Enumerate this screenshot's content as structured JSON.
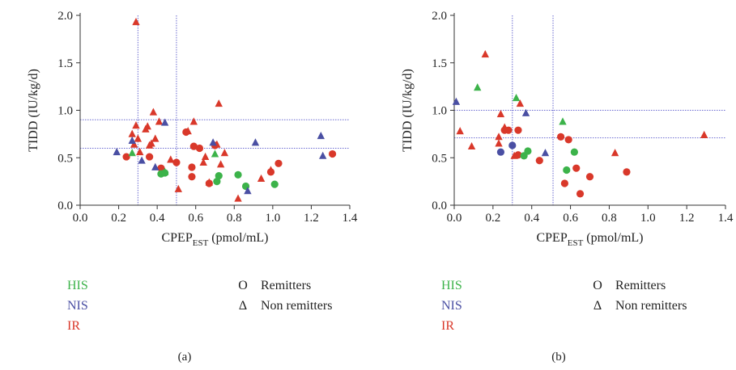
{
  "colors": {
    "HIS": "#3cb34a",
    "NIS": "#4a4fa3",
    "IR": "#d9382a",
    "axis": "#333333",
    "refline": "#6a6ad0"
  },
  "legend": {
    "groups": [
      {
        "key": "HIS",
        "label": "HIS"
      },
      {
        "key": "NIS",
        "label": "NIS"
      },
      {
        "key": "IR",
        "label": "IR"
      }
    ],
    "markers": [
      {
        "symbol": "O",
        "label": "Remitters"
      },
      {
        "symbol": "Δ",
        "label": "Non remitters"
      }
    ]
  },
  "chart_data": [
    {
      "type": "scatter",
      "panel_label": "(a)",
      "ylabel": "TIDD (IU/kg/d)",
      "xlabel_main": "CPEP",
      "xlabel_sub": "EST",
      "xlabel_unit": " (pmol/mL)",
      "xlim": [
        0.0,
        1.4
      ],
      "ylim": [
        0.0,
        2.0
      ],
      "xticks": [
        "0.0",
        "0.2",
        "0.4",
        "0.6",
        "0.8",
        "1.0",
        "1.2",
        "1.4"
      ],
      "yticks": [
        "0.0",
        "0.5",
        "1.0",
        "1.5",
        "2.0"
      ],
      "ref_x": [
        0.3,
        0.5
      ],
      "ref_y": [
        0.6,
        0.9
      ],
      "points": [
        {
          "x": 0.24,
          "y": 0.51,
          "group": "IR",
          "shape": "circle"
        },
        {
          "x": 0.36,
          "y": 0.51,
          "group": "IR",
          "shape": "circle"
        },
        {
          "x": 0.42,
          "y": 0.39,
          "group": "IR",
          "shape": "circle"
        },
        {
          "x": 0.5,
          "y": 0.45,
          "group": "IR",
          "shape": "circle"
        },
        {
          "x": 0.55,
          "y": 0.77,
          "group": "IR",
          "shape": "circle"
        },
        {
          "x": 0.58,
          "y": 0.4,
          "group": "IR",
          "shape": "circle"
        },
        {
          "x": 0.58,
          "y": 0.3,
          "group": "IR",
          "shape": "circle"
        },
        {
          "x": 0.59,
          "y": 0.62,
          "group": "IR",
          "shape": "circle"
        },
        {
          "x": 0.62,
          "y": 0.6,
          "group": "IR",
          "shape": "circle"
        },
        {
          "x": 0.7,
          "y": 0.63,
          "group": "IR",
          "shape": "circle"
        },
        {
          "x": 0.67,
          "y": 0.23,
          "group": "IR",
          "shape": "circle"
        },
        {
          "x": 0.99,
          "y": 0.35,
          "group": "IR",
          "shape": "circle"
        },
        {
          "x": 1.03,
          "y": 0.44,
          "group": "IR",
          "shape": "circle"
        },
        {
          "x": 1.31,
          "y": 0.54,
          "group": "IR",
          "shape": "circle"
        },
        {
          "x": 0.42,
          "y": 0.33,
          "group": "HIS",
          "shape": "circle"
        },
        {
          "x": 0.44,
          "y": 0.34,
          "group": "HIS",
          "shape": "circle"
        },
        {
          "x": 0.71,
          "y": 0.25,
          "group": "HIS",
          "shape": "circle"
        },
        {
          "x": 0.72,
          "y": 0.31,
          "group": "HIS",
          "shape": "circle"
        },
        {
          "x": 0.82,
          "y": 0.32,
          "group": "HIS",
          "shape": "circle"
        },
        {
          "x": 0.86,
          "y": 0.2,
          "group": "HIS",
          "shape": "circle"
        },
        {
          "x": 1.01,
          "y": 0.22,
          "group": "HIS",
          "shape": "circle"
        },
        {
          "x": 0.29,
          "y": 1.93,
          "group": "IR",
          "shape": "triangle"
        },
        {
          "x": 0.27,
          "y": 0.75,
          "group": "IR",
          "shape": "triangle"
        },
        {
          "x": 0.28,
          "y": 0.64,
          "group": "IR",
          "shape": "triangle"
        },
        {
          "x": 0.29,
          "y": 0.84,
          "group": "IR",
          "shape": "triangle"
        },
        {
          "x": 0.3,
          "y": 0.7,
          "group": "IR",
          "shape": "triangle"
        },
        {
          "x": 0.31,
          "y": 0.56,
          "group": "IR",
          "shape": "triangle"
        },
        {
          "x": 0.34,
          "y": 0.8,
          "group": "IR",
          "shape": "triangle"
        },
        {
          "x": 0.35,
          "y": 0.83,
          "group": "IR",
          "shape": "triangle"
        },
        {
          "x": 0.36,
          "y": 0.63,
          "group": "IR",
          "shape": "triangle"
        },
        {
          "x": 0.37,
          "y": 0.65,
          "group": "IR",
          "shape": "triangle"
        },
        {
          "x": 0.38,
          "y": 0.98,
          "group": "IR",
          "shape": "triangle"
        },
        {
          "x": 0.39,
          "y": 0.7,
          "group": "IR",
          "shape": "triangle"
        },
        {
          "x": 0.41,
          "y": 0.88,
          "group": "IR",
          "shape": "triangle"
        },
        {
          "x": 0.47,
          "y": 0.48,
          "group": "IR",
          "shape": "triangle"
        },
        {
          "x": 0.51,
          "y": 0.17,
          "group": "IR",
          "shape": "triangle"
        },
        {
          "x": 0.56,
          "y": 0.78,
          "group": "IR",
          "shape": "triangle"
        },
        {
          "x": 0.59,
          "y": 0.88,
          "group": "IR",
          "shape": "triangle"
        },
        {
          "x": 0.64,
          "y": 0.45,
          "group": "IR",
          "shape": "triangle"
        },
        {
          "x": 0.65,
          "y": 0.51,
          "group": "IR",
          "shape": "triangle"
        },
        {
          "x": 0.67,
          "y": 0.24,
          "group": "IR",
          "shape": "triangle"
        },
        {
          "x": 0.71,
          "y": 0.64,
          "group": "IR",
          "shape": "triangle"
        },
        {
          "x": 0.72,
          "y": 1.07,
          "group": "IR",
          "shape": "triangle"
        },
        {
          "x": 0.73,
          "y": 0.43,
          "group": "IR",
          "shape": "triangle"
        },
        {
          "x": 0.75,
          "y": 0.55,
          "group": "IR",
          "shape": "triangle"
        },
        {
          "x": 0.82,
          "y": 0.07,
          "group": "IR",
          "shape": "triangle"
        },
        {
          "x": 0.94,
          "y": 0.28,
          "group": "IR",
          "shape": "triangle"
        },
        {
          "x": 0.99,
          "y": 0.37,
          "group": "IR",
          "shape": "triangle"
        },
        {
          "x": 0.19,
          "y": 0.56,
          "group": "NIS",
          "shape": "triangle"
        },
        {
          "x": 0.27,
          "y": 0.68,
          "group": "NIS",
          "shape": "triangle"
        },
        {
          "x": 0.32,
          "y": 0.47,
          "group": "NIS",
          "shape": "triangle"
        },
        {
          "x": 0.39,
          "y": 0.4,
          "group": "NIS",
          "shape": "triangle"
        },
        {
          "x": 0.44,
          "y": 0.87,
          "group": "NIS",
          "shape": "triangle"
        },
        {
          "x": 0.69,
          "y": 0.66,
          "group": "NIS",
          "shape": "triangle"
        },
        {
          "x": 0.87,
          "y": 0.15,
          "group": "NIS",
          "shape": "triangle"
        },
        {
          "x": 0.91,
          "y": 0.66,
          "group": "NIS",
          "shape": "triangle"
        },
        {
          "x": 1.25,
          "y": 0.73,
          "group": "NIS",
          "shape": "triangle"
        },
        {
          "x": 1.26,
          "y": 0.52,
          "group": "NIS",
          "shape": "triangle"
        },
        {
          "x": 0.27,
          "y": 0.55,
          "group": "HIS",
          "shape": "triangle"
        },
        {
          "x": 0.7,
          "y": 0.54,
          "group": "HIS",
          "shape": "triangle"
        },
        {
          "x": 0.44,
          "y": 0.35,
          "group": "HIS",
          "shape": "triangle"
        }
      ]
    },
    {
      "type": "scatter",
      "panel_label": "(b)",
      "ylabel": "TIDD (IU/kg/d)",
      "xlabel_main": "CPEP",
      "xlabel_sub": "EST",
      "xlabel_unit": " (pmol/mL)",
      "xlim": [
        0.0,
        1.4
      ],
      "ylim": [
        0.0,
        2.0
      ],
      "xticks": [
        "0.0",
        "0.2",
        "0.4",
        "0.6",
        "0.8",
        "1.0",
        "1.2",
        "1.4"
      ],
      "yticks": [
        "0.0",
        "0.5",
        "1.0",
        "1.5",
        "2.0"
      ],
      "ref_x": [
        0.3,
        0.51
      ],
      "ref_y": [
        0.71,
        1.0
      ],
      "points": [
        {
          "x": 0.26,
          "y": 0.79,
          "group": "IR",
          "shape": "circle"
        },
        {
          "x": 0.28,
          "y": 0.79,
          "group": "IR",
          "shape": "circle"
        },
        {
          "x": 0.33,
          "y": 0.79,
          "group": "IR",
          "shape": "circle"
        },
        {
          "x": 0.33,
          "y": 0.53,
          "group": "IR",
          "shape": "circle"
        },
        {
          "x": 0.44,
          "y": 0.47,
          "group": "IR",
          "shape": "circle"
        },
        {
          "x": 0.55,
          "y": 0.72,
          "group": "IR",
          "shape": "circle"
        },
        {
          "x": 0.59,
          "y": 0.69,
          "group": "IR",
          "shape": "circle"
        },
        {
          "x": 0.63,
          "y": 0.39,
          "group": "IR",
          "shape": "circle"
        },
        {
          "x": 0.57,
          "y": 0.23,
          "group": "IR",
          "shape": "circle"
        },
        {
          "x": 0.65,
          "y": 0.12,
          "group": "IR",
          "shape": "circle"
        },
        {
          "x": 0.7,
          "y": 0.3,
          "group": "IR",
          "shape": "circle"
        },
        {
          "x": 0.89,
          "y": 0.35,
          "group": "IR",
          "shape": "circle"
        },
        {
          "x": 0.3,
          "y": 0.63,
          "group": "NIS",
          "shape": "circle"
        },
        {
          "x": 0.24,
          "y": 0.56,
          "group": "NIS",
          "shape": "circle"
        },
        {
          "x": 0.36,
          "y": 0.52,
          "group": "HIS",
          "shape": "circle"
        },
        {
          "x": 0.38,
          "y": 0.57,
          "group": "HIS",
          "shape": "circle"
        },
        {
          "x": 0.58,
          "y": 0.37,
          "group": "HIS",
          "shape": "circle"
        },
        {
          "x": 0.62,
          "y": 0.56,
          "group": "HIS",
          "shape": "circle"
        },
        {
          "x": 0.16,
          "y": 1.59,
          "group": "IR",
          "shape": "triangle"
        },
        {
          "x": 0.03,
          "y": 0.78,
          "group": "IR",
          "shape": "triangle"
        },
        {
          "x": 0.09,
          "y": 0.62,
          "group": "IR",
          "shape": "triangle"
        },
        {
          "x": 0.23,
          "y": 0.72,
          "group": "IR",
          "shape": "triangle"
        },
        {
          "x": 0.23,
          "y": 0.65,
          "group": "IR",
          "shape": "triangle"
        },
        {
          "x": 0.24,
          "y": 0.96,
          "group": "IR",
          "shape": "triangle"
        },
        {
          "x": 0.26,
          "y": 0.82,
          "group": "IR",
          "shape": "triangle"
        },
        {
          "x": 0.31,
          "y": 0.52,
          "group": "IR",
          "shape": "triangle"
        },
        {
          "x": 0.34,
          "y": 1.07,
          "group": "IR",
          "shape": "triangle"
        },
        {
          "x": 0.83,
          "y": 0.55,
          "group": "IR",
          "shape": "triangle"
        },
        {
          "x": 1.29,
          "y": 0.74,
          "group": "IR",
          "shape": "triangle"
        },
        {
          "x": 0.01,
          "y": 1.09,
          "group": "NIS",
          "shape": "triangle"
        },
        {
          "x": 0.37,
          "y": 0.97,
          "group": "NIS",
          "shape": "triangle"
        },
        {
          "x": 0.47,
          "y": 0.55,
          "group": "NIS",
          "shape": "triangle"
        },
        {
          "x": 0.12,
          "y": 1.24,
          "group": "HIS",
          "shape": "triangle"
        },
        {
          "x": 0.32,
          "y": 1.13,
          "group": "HIS",
          "shape": "triangle"
        },
        {
          "x": 0.56,
          "y": 0.88,
          "group": "HIS",
          "shape": "triangle"
        }
      ]
    }
  ]
}
